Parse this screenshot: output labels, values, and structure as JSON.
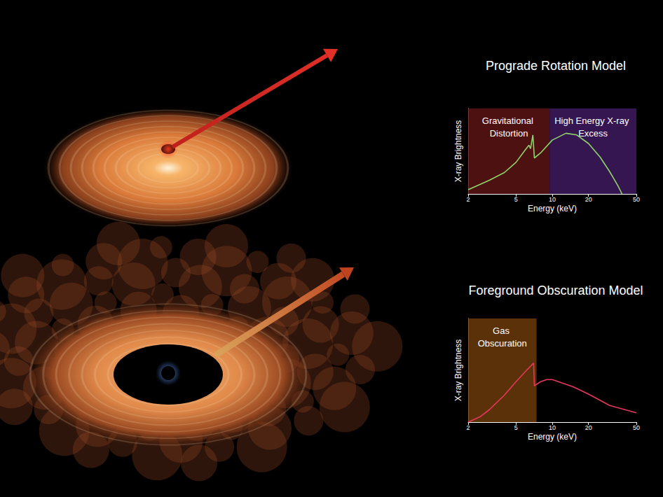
{
  "chart_data": [
    {
      "type": "line",
      "title": "Prograde Rotation Model",
      "x_label": "Energy (keV)",
      "y_label": "X-ray Brightness",
      "log": "x",
      "xlim": [
        2,
        50
      ],
      "xticks": [
        2,
        5,
        10,
        20,
        50
      ],
      "ylim": [
        0,
        1
      ],
      "tick_labels": "x",
      "grid": false,
      "color": "#8fd46a",
      "x": [
        2,
        3,
        4,
        5,
        6,
        6.4,
        6.6,
        6.9,
        7.1,
        8,
        10,
        13,
        16,
        20,
        25,
        30,
        35,
        38
      ],
      "values": [
        0.05,
        0.16,
        0.25,
        0.37,
        0.52,
        0.57,
        0.53,
        0.69,
        0.42,
        0.48,
        0.63,
        0.71,
        0.69,
        0.59,
        0.43,
        0.26,
        0.1,
        0
      ],
      "annotations": [
        {
          "text": "Gravitational Distortion",
          "x": [
            2,
            9.5
          ],
          "color": "#5c1414"
        },
        {
          "text": "High Energy X-ray Excess",
          "x": [
            9.5,
            50
          ],
          "color": "#3e1a5e"
        }
      ]
    },
    {
      "type": "line",
      "title": "Foreground Obscuration Model",
      "x_label": "Energy (keV)",
      "y_label": "X-ray Brightness",
      "log": "x",
      "xlim": [
        2,
        50
      ],
      "xticks": [
        2,
        5,
        10,
        20,
        50
      ],
      "ylim": [
        0,
        1
      ],
      "tick_labels": "x",
      "grid": false,
      "color": "#e8365a",
      "x": [
        2,
        2.5,
        3,
        4,
        5,
        6,
        7,
        7.1,
        8,
        9,
        10,
        15,
        20,
        30,
        50
      ],
      "values": [
        0,
        0.05,
        0.12,
        0.26,
        0.39,
        0.49,
        0.57,
        0.35,
        0.39,
        0.41,
        0.41,
        0.34,
        0.27,
        0.16,
        0.09
      ],
      "annotations": [
        {
          "text": "Gas Obscuration",
          "x": [
            2,
            7.4
          ],
          "color": "#6b3a0c"
        }
      ]
    }
  ]
}
